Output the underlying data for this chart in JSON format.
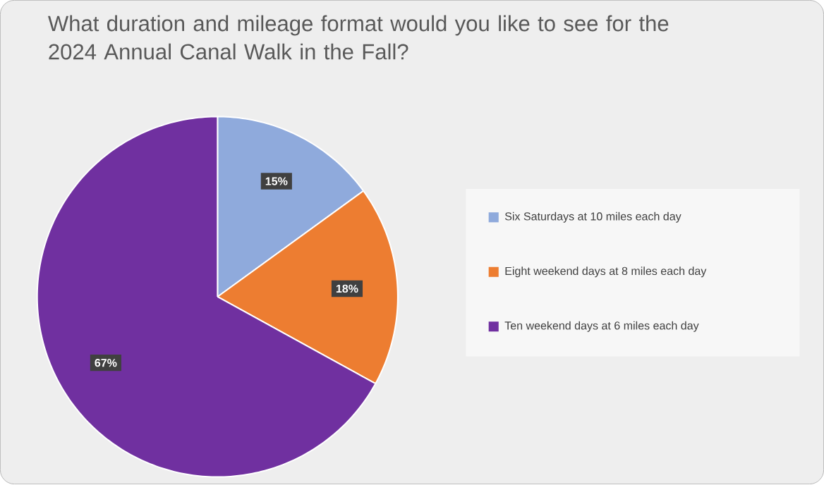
{
  "chart_data": {
    "type": "pie",
    "title": "What duration and mileage format would you like to see for the 2024 Annual Canal Walk in the Fall?",
    "categories": [
      "Six Saturdays at 10 miles each day",
      "Eight weekend days at 8 miles each day",
      "Ten weekend days at 6 miles each day"
    ],
    "values": [
      15,
      18,
      67
    ],
    "value_labels": [
      "15%",
      "18%",
      "67%"
    ],
    "colors": [
      "#8faadc",
      "#ed7d31",
      "#7030a0"
    ],
    "legend": "right"
  }
}
